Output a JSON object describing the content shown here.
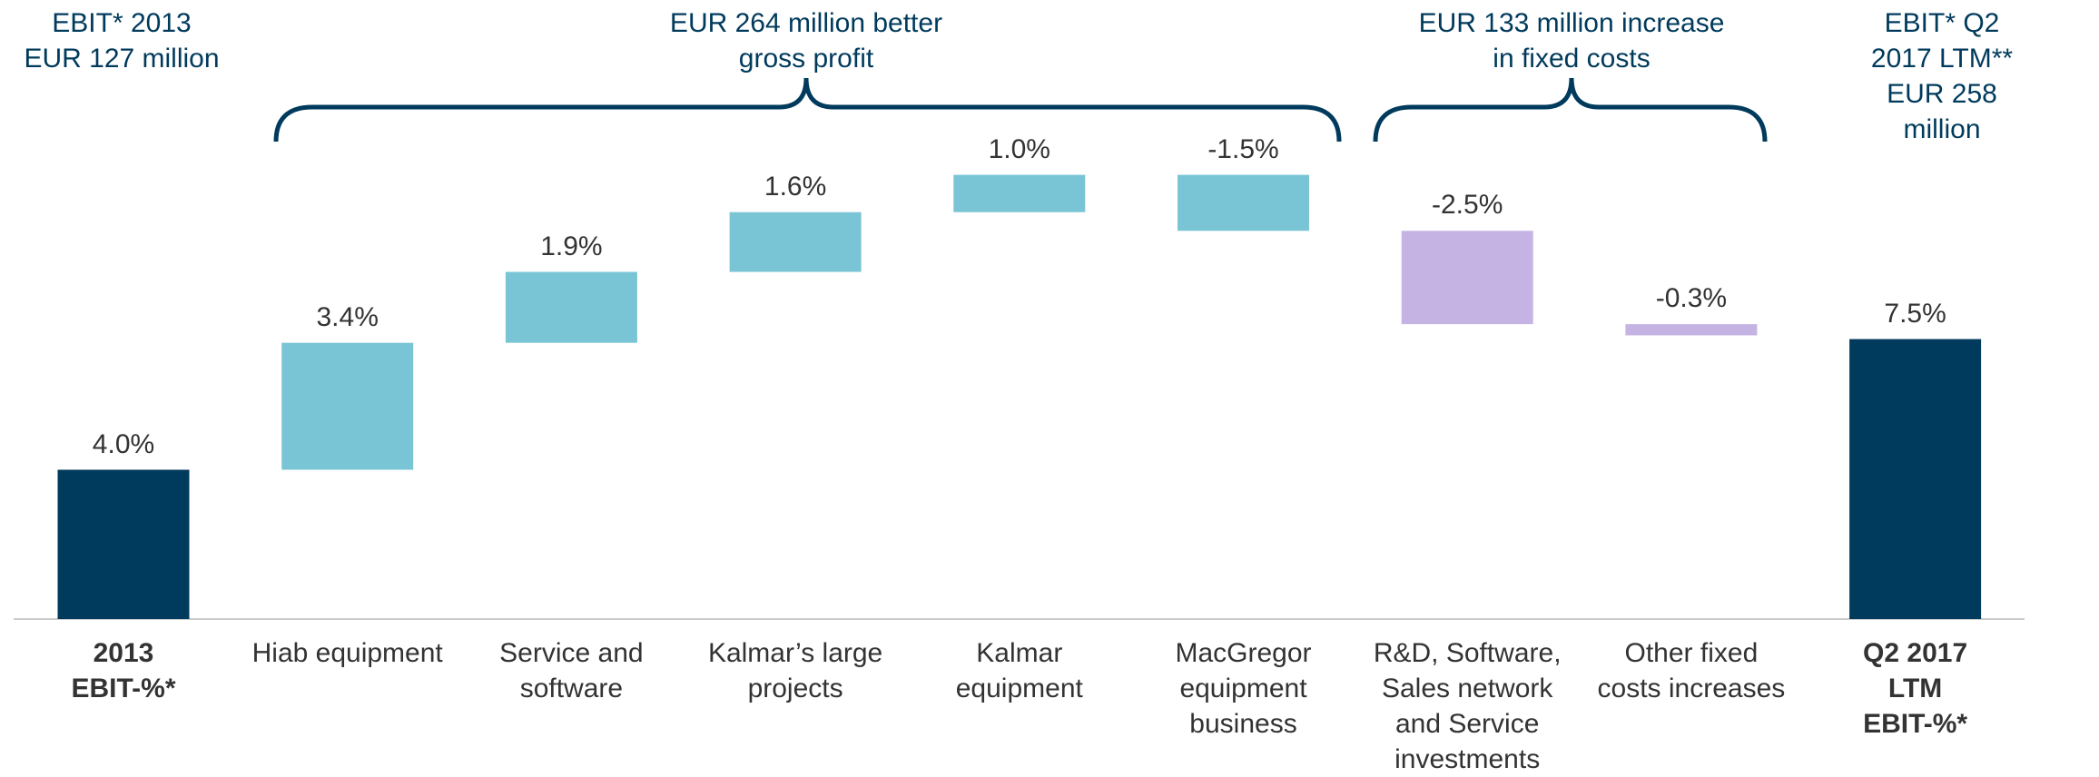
{
  "chart_data": {
    "type": "waterfall",
    "annotations": [
      "EBIT* 2013\nEUR 127 million",
      "EUR 264 million better\ngross profit",
      "EUR 133 million increase\nin fixed costs",
      "EBIT* Q2 2017 LTM**\nEUR 258 million"
    ],
    "categories": [
      "2013\nEBIT-%*",
      "Hiab equipment",
      "Service and\nsoftware",
      "Kalmar’s large\nprojects",
      "Kalmar\nequipment",
      "MacGregor\nequipment\nbusiness",
      "R&D, Software,\nSales network\nand Service\ninvestments",
      "Other fixed\ncosts increases",
      "Q2 2017\nLTM\nEBIT-%*"
    ],
    "values": [
      4.0,
      3.4,
      1.9,
      1.6,
      1.0,
      -1.5,
      -2.5,
      -0.3,
      7.5
    ],
    "value_labels": [
      "4.0%",
      "3.4%",
      "1.9%",
      "1.6%",
      "1.0%",
      "-1.5%",
      "-2.5%",
      "-0.3%",
      "7.5%"
    ],
    "is_total": [
      true,
      false,
      false,
      false,
      false,
      false,
      false,
      false,
      true
    ],
    "colors": [
      "#003a5c",
      "#7ac5d5",
      "#7ac5d5",
      "#7ac5d5",
      "#7ac5d5",
      "#7ac5d5",
      "#c5b4e3",
      "#c5b4e3",
      "#003a5c"
    ],
    "ylim": [
      0,
      16
    ]
  }
}
